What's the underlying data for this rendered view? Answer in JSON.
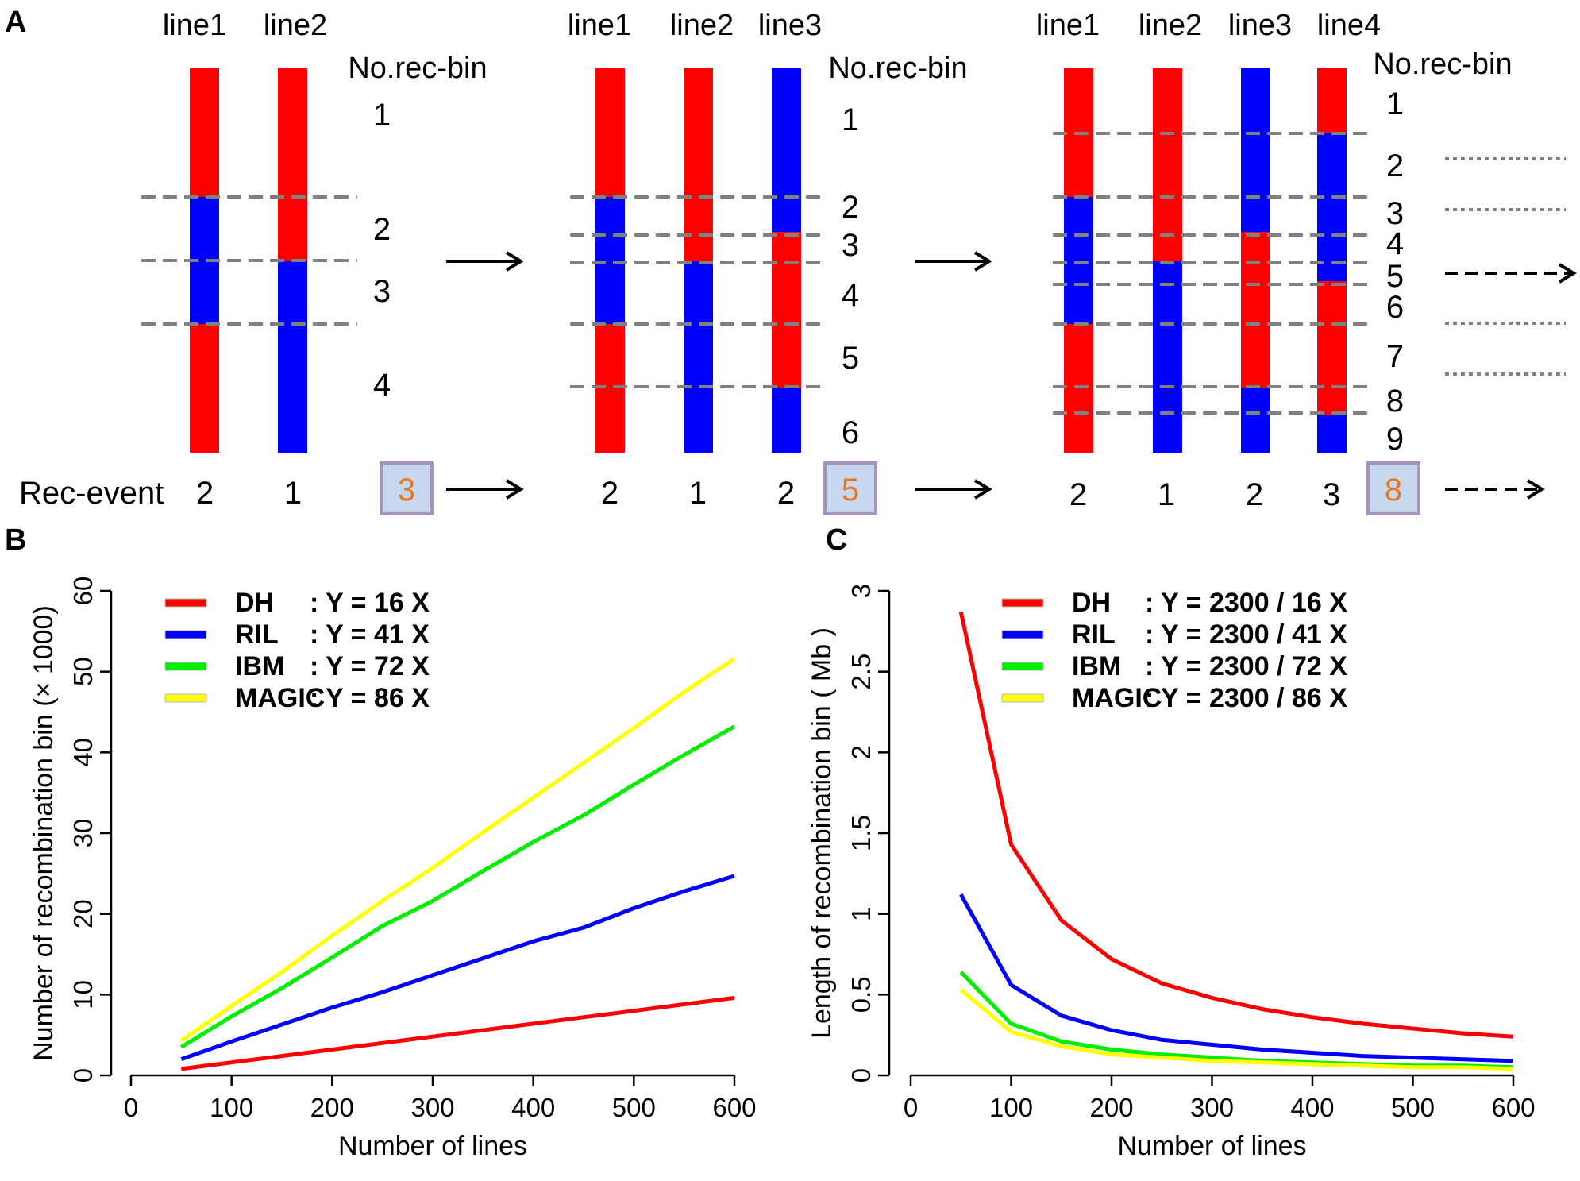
{
  "panels": {
    "a": "A",
    "b": "B",
    "c": "C"
  },
  "colors": {
    "red": "#ff0000",
    "blue": "#0000ff",
    "green": "#00ee00",
    "yellow": "#ffff00",
    "divider": "#808080",
    "box_fill": "#c7d8ee",
    "box_border": "#a892c0",
    "total_text": "#e87722"
  },
  "panel_a": {
    "rec_event_label": "Rec-event",
    "bin_header": "No.rec-bin",
    "stages": [
      {
        "lines": [
          {
            "label": "line1",
            "rec": "2",
            "segments": [
              "red",
              "blue",
              "red"
            ]
          },
          {
            "label": "line2",
            "rec": "1",
            "segments": [
              "red",
              "blue"
            ]
          }
        ],
        "bins": [
          "1",
          "2",
          "3",
          "4"
        ],
        "total": "3"
      },
      {
        "lines": [
          {
            "label": "line1",
            "rec": "2",
            "segments": [
              "red",
              "blue",
              "red"
            ]
          },
          {
            "label": "line2",
            "rec": "1",
            "segments": [
              "red",
              "blue"
            ]
          },
          {
            "label": "line3",
            "rec": "2",
            "segments": [
              "blue",
              "red",
              "blue"
            ]
          }
        ],
        "bins": [
          "1",
          "2",
          "3",
          "4",
          "5",
          "6"
        ],
        "total": "5"
      },
      {
        "lines": [
          {
            "label": "line1",
            "rec": "2",
            "segments": [
              "red",
              "blue",
              "red"
            ]
          },
          {
            "label": "line2",
            "rec": "1",
            "segments": [
              "red",
              "blue"
            ]
          },
          {
            "label": "line3",
            "rec": "2",
            "segments": [
              "blue",
              "red",
              "blue"
            ]
          },
          {
            "label": "line4",
            "rec": "3",
            "segments": [
              "red",
              "blue",
              "red",
              "blue"
            ]
          }
        ],
        "bins": [
          "1",
          "2",
          "3",
          "4",
          "5",
          "6",
          "7",
          "8",
          "9"
        ],
        "total": "8"
      }
    ]
  },
  "chart_data": [
    {
      "type": "line",
      "panel": "B",
      "xlabel": "Number of lines",
      "ylabel": "Number of recombination bin (× 1000)",
      "xlim": [
        0,
        600
      ],
      "ylim": [
        0,
        60
      ],
      "xticks": [
        0,
        100,
        200,
        300,
        400,
        500,
        600
      ],
      "yticks": [
        0,
        10,
        20,
        30,
        40,
        50,
        60
      ],
      "x": [
        50,
        100,
        150,
        200,
        250,
        300,
        350,
        400,
        450,
        500,
        550,
        600
      ],
      "series": [
        {
          "name": "DH",
          "label": "DH",
          "formula": ": Y = 16 X",
          "color": "red",
          "values": [
            0.8,
            1.6,
            2.4,
            3.2,
            4.0,
            4.8,
            5.6,
            6.4,
            7.2,
            8.0,
            8.8,
            9.6
          ]
        },
        {
          "name": "RIL",
          "label": "RIL",
          "formula": ": Y = 41 X",
          "color": "blue",
          "values": [
            2.0,
            4.2,
            6.3,
            8.4,
            10.3,
            12.4,
            14.5,
            16.6,
            18.3,
            20.7,
            22.8,
            24.7
          ]
        },
        {
          "name": "IBM",
          "label": "IBM",
          "formula": ": Y = 72 X",
          "color": "green",
          "values": [
            3.5,
            7.3,
            10.8,
            14.6,
            18.5,
            21.6,
            25.3,
            28.9,
            32.2,
            36.0,
            39.7,
            43.2
          ]
        },
        {
          "name": "MAGIC",
          "label": "MAGIC",
          "formula": ": Y = 86 X",
          "color": "yellow",
          "values": [
            4.3,
            8.6,
            12.8,
            17.3,
            21.6,
            25.7,
            30.1,
            34.4,
            38.7,
            43.0,
            47.5,
            51.6
          ]
        }
      ]
    },
    {
      "type": "line",
      "panel": "C",
      "xlabel": "Number of lines",
      "ylabel": "Length of recombination bin ( Mb )",
      "xlim": [
        0,
        600
      ],
      "ylim": [
        0,
        3
      ],
      "xticks": [
        0,
        100,
        200,
        300,
        400,
        500,
        600
      ],
      "yticks": [
        0,
        0.5,
        1,
        1.5,
        2,
        2.5,
        3
      ],
      "ytick_labels": [
        "0",
        "0.5",
        "1",
        "1.5",
        "2",
        "2.5",
        "3"
      ],
      "x": [
        50,
        100,
        150,
        200,
        250,
        300,
        350,
        400,
        450,
        500,
        550,
        600
      ],
      "series": [
        {
          "name": "DH",
          "label": "DH",
          "formula": ": Y = 2300 / 16 X",
          "color": "red",
          "values": [
            2.87,
            1.43,
            0.96,
            0.72,
            0.57,
            0.48,
            0.41,
            0.36,
            0.32,
            0.29,
            0.26,
            0.24
          ]
        },
        {
          "name": "RIL",
          "label": "RIL",
          "formula": ": Y = 2300 / 41 X",
          "color": "blue",
          "values": [
            1.12,
            0.56,
            0.37,
            0.28,
            0.22,
            0.19,
            0.16,
            0.14,
            0.12,
            0.11,
            0.1,
            0.09
          ]
        },
        {
          "name": "IBM",
          "label": "IBM",
          "formula": ": Y = 2300 / 72 X",
          "color": "green",
          "values": [
            0.64,
            0.32,
            0.21,
            0.16,
            0.13,
            0.11,
            0.09,
            0.08,
            0.07,
            0.06,
            0.06,
            0.05
          ]
        },
        {
          "name": "MAGIC",
          "label": "MAGIC",
          "formula": ": Y = 2300 / 86 X",
          "color": "yellow",
          "values": [
            0.53,
            0.27,
            0.18,
            0.13,
            0.11,
            0.09,
            0.08,
            0.07,
            0.06,
            0.05,
            0.05,
            0.04
          ]
        }
      ]
    }
  ]
}
